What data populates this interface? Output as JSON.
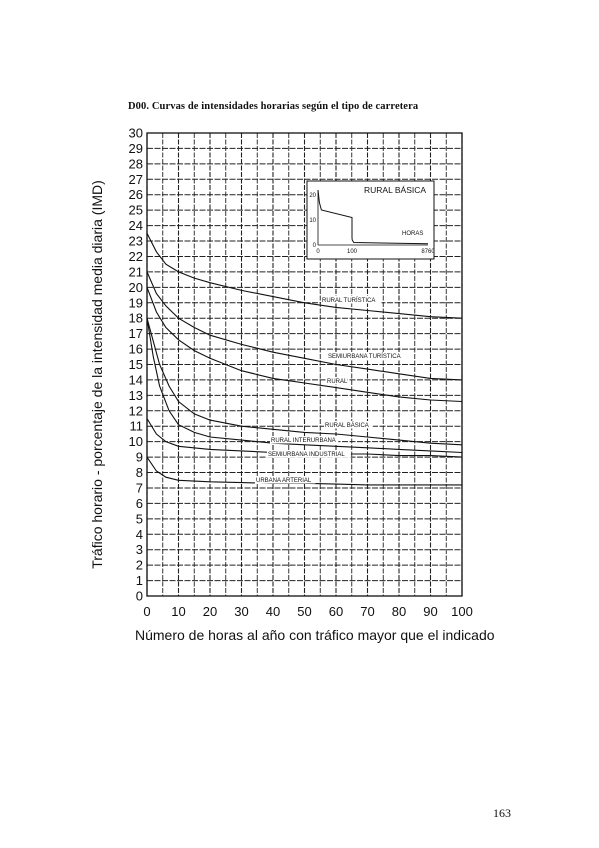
{
  "title": "D00.   Curvas de intensidades horarias según el tipo de carretera",
  "page_number": "163",
  "chart_data": {
    "type": "line",
    "title": "D00.   Curvas de intensidades horarias según el tipo de carretera",
    "xlabel": "Número de horas al año con tráfico mayor que el indicado",
    "ylabel": "Tráfico horario - porcentaje de la intensidad media diaria (IMD)",
    "xlim": [
      0,
      100
    ],
    "ylim": [
      0,
      30
    ],
    "x_ticks": [
      "0",
      "10",
      "20",
      "30",
      "40",
      "50",
      "60",
      "70",
      "80",
      "90",
      "100"
    ],
    "y_ticks": [
      "0",
      "1",
      "2",
      "3",
      "4",
      "5",
      "6",
      "7",
      "8",
      "9",
      "10",
      "11",
      "12",
      "13",
      "14",
      "15",
      "16",
      "17",
      "18",
      "19",
      "20",
      "21",
      "22",
      "23",
      "24",
      "25",
      "26",
      "27",
      "28",
      "29",
      "30"
    ],
    "grid": true,
    "series": [
      {
        "name": "RURAL TURÍSTICA",
        "points": [
          [
            0,
            23.5
          ],
          [
            3,
            22.3
          ],
          [
            6,
            21.5
          ],
          [
            10,
            21.0
          ],
          [
            15,
            20.6
          ],
          [
            20,
            20.3
          ],
          [
            30,
            19.8
          ],
          [
            40,
            19.4
          ],
          [
            50,
            19.0
          ],
          [
            60,
            18.7
          ],
          [
            70,
            18.5
          ],
          [
            80,
            18.3
          ],
          [
            90,
            18.1
          ],
          [
            100,
            18.0
          ]
        ]
      },
      {
        "name": "SEMIURBANA TURÍSTICA",
        "points": [
          [
            0,
            21.0
          ],
          [
            3,
            19.6
          ],
          [
            6,
            18.8
          ],
          [
            10,
            18.0
          ],
          [
            15,
            17.4
          ],
          [
            20,
            16.9
          ],
          [
            30,
            16.3
          ],
          [
            40,
            15.8
          ],
          [
            50,
            15.4
          ],
          [
            60,
            15.0
          ],
          [
            70,
            14.7
          ],
          [
            80,
            14.4
          ],
          [
            90,
            14.1
          ],
          [
            100,
            14.0
          ]
        ]
      },
      {
        "name": "RURAL",
        "points": [
          [
            0,
            20.0
          ],
          [
            3,
            18.4
          ],
          [
            6,
            17.4
          ],
          [
            10,
            16.6
          ],
          [
            15,
            15.9
          ],
          [
            20,
            15.4
          ],
          [
            30,
            14.6
          ],
          [
            40,
            14.1
          ],
          [
            50,
            13.8
          ],
          [
            60,
            13.5
          ],
          [
            70,
            13.2
          ],
          [
            80,
            12.9
          ],
          [
            90,
            12.7
          ],
          [
            100,
            12.6
          ]
        ]
      },
      {
        "name": "RURAL BÁSICA",
        "points": [
          [
            0,
            18.0
          ],
          [
            2,
            16.5
          ],
          [
            4,
            15.0
          ],
          [
            7,
            13.6
          ],
          [
            10,
            12.6
          ],
          [
            15,
            11.8
          ],
          [
            20,
            11.4
          ],
          [
            30,
            11.0
          ],
          [
            40,
            10.8
          ],
          [
            50,
            10.6
          ],
          [
            60,
            10.5
          ],
          [
            70,
            10.3
          ],
          [
            80,
            10.1
          ],
          [
            90,
            9.9
          ],
          [
            100,
            9.8
          ]
        ]
      },
      {
        "name": "RURAL INTERURBANA",
        "points": [
          [
            0,
            18.0
          ],
          [
            2,
            15.5
          ],
          [
            4,
            13.6
          ],
          [
            7,
            12.0
          ],
          [
            10,
            11.1
          ],
          [
            15,
            10.6
          ],
          [
            20,
            10.3
          ],
          [
            30,
            10.1
          ],
          [
            40,
            9.9
          ],
          [
            50,
            9.8
          ],
          [
            60,
            9.7
          ],
          [
            70,
            9.6
          ],
          [
            80,
            9.5
          ],
          [
            90,
            9.4
          ],
          [
            100,
            9.3
          ]
        ]
      },
      {
        "name": "SEMIURBANA INDUSTRIAL",
        "points": [
          [
            0,
            11.5
          ],
          [
            3,
            10.5
          ],
          [
            6,
            10.0
          ],
          [
            10,
            9.7
          ],
          [
            20,
            9.5
          ],
          [
            30,
            9.4
          ],
          [
            40,
            9.3
          ],
          [
            50,
            9.3
          ],
          [
            60,
            9.2
          ],
          [
            70,
            9.2
          ],
          [
            80,
            9.1
          ],
          [
            90,
            9.1
          ],
          [
            100,
            9.0
          ]
        ]
      },
      {
        "name": "URBANA ARTERIAL",
        "points": [
          [
            0,
            9.0
          ],
          [
            3,
            8.1
          ],
          [
            6,
            7.7
          ],
          [
            10,
            7.5
          ],
          [
            20,
            7.4
          ],
          [
            30,
            7.35
          ],
          [
            40,
            7.3
          ],
          [
            50,
            7.3
          ],
          [
            60,
            7.25
          ],
          [
            70,
            7.2
          ],
          [
            80,
            7.2
          ],
          [
            90,
            7.2
          ],
          [
            100,
            7.2
          ]
        ]
      }
    ],
    "inset": {
      "title": "RURAL BÁSICA",
      "xlabel": "HORAS",
      "x_ticks": [
        "0",
        "100",
        "8760"
      ],
      "y_ticks": [
        "0",
        "10",
        "20"
      ],
      "points": [
        [
          0,
          22
        ],
        [
          4,
          17
        ],
        [
          10,
          14
        ],
        [
          100,
          11
        ],
        [
          101,
          3
        ],
        [
          120,
          2
        ],
        [
          300,
          1
        ],
        [
          8760,
          0.5
        ]
      ]
    }
  }
}
